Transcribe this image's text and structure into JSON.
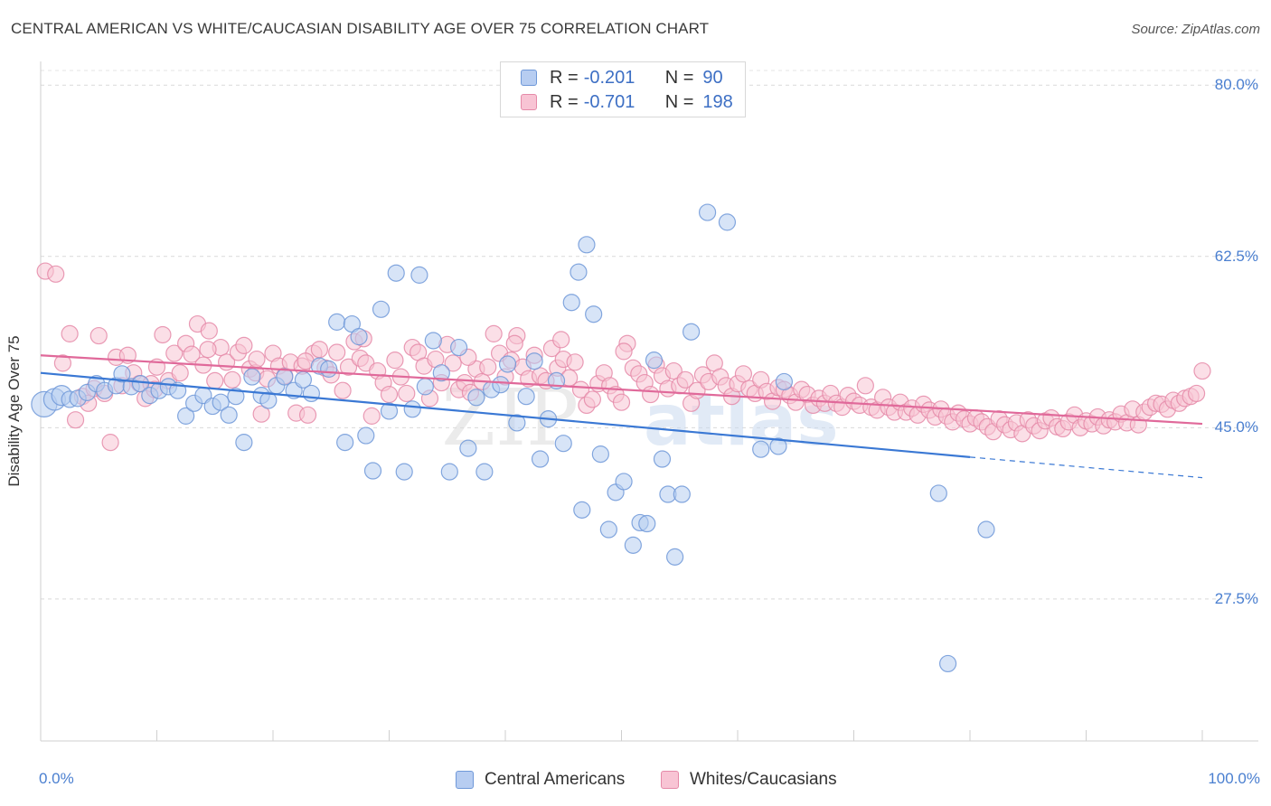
{
  "title": "CENTRAL AMERICAN VS WHITE/CAUCASIAN DISABILITY AGE OVER 75 CORRELATION CHART",
  "source": "Source: ZipAtlas.com",
  "watermark": {
    "zip": "ZIP",
    "atlas": "atlas"
  },
  "chart_data": {
    "type": "scatter",
    "xlabel": "",
    "ylabel": "Disability Age Over 75",
    "xlim": [
      0,
      100
    ],
    "ylim": [
      13,
      81.5
    ],
    "x_tick_labels": [
      {
        "value": 0,
        "label": "0.0%"
      },
      {
        "value": 100,
        "label": "100.0%"
      }
    ],
    "y_tick_labels": [
      {
        "value": 80.0,
        "label": "80.0%"
      },
      {
        "value": 62.5,
        "label": "62.5%"
      },
      {
        "value": 45.0,
        "label": "45.0%"
      },
      {
        "value": 27.5,
        "label": "27.5%"
      }
    ],
    "grid": true,
    "legend_position": "top-center",
    "stats": [
      {
        "series": "Central Americans",
        "r_label": "R =",
        "r": "-0.201",
        "n_label": "N =",
        "n": "90",
        "color": "#6f98d8",
        "fill": "#b7cdf1"
      },
      {
        "series": "Whites/Caucasians",
        "r_label": "R =",
        "r": "-0.701",
        "n_label": "N =",
        "n": "198",
        "color": "#e58aa8",
        "fill": "#f8c4d4"
      }
    ],
    "series": [
      {
        "name": "Central Americans",
        "color": "#6f98d8",
        "fill": "#b7cdf1",
        "trend": {
          "x0": 0,
          "y0": 50.6,
          "x1": 80,
          "y1": 42.0,
          "dash_to_x": 100,
          "dash_to_y": 39.9,
          "color": "#3a78d4"
        },
        "points": [
          [
            0.3,
            47.4
          ],
          [
            1.2,
            47.9
          ],
          [
            1.8,
            48.3
          ],
          [
            2.5,
            47.9
          ],
          [
            3.2,
            48.0
          ],
          [
            4.0,
            48.6
          ],
          [
            4.8,
            49.5
          ],
          [
            5.5,
            48.8
          ],
          [
            6.5,
            49.3
          ],
          [
            7.0,
            50.5
          ],
          [
            7.8,
            49.2
          ],
          [
            8.6,
            49.5
          ],
          [
            9.4,
            48.3
          ],
          [
            10.2,
            48.8
          ],
          [
            11.0,
            49.2
          ],
          [
            11.8,
            48.8
          ],
          [
            12.5,
            46.2
          ],
          [
            13.2,
            47.5
          ],
          [
            14.0,
            48.3
          ],
          [
            14.8,
            47.2
          ],
          [
            15.5,
            47.6
          ],
          [
            16.2,
            46.3
          ],
          [
            16.8,
            48.2
          ],
          [
            17.5,
            43.5
          ],
          [
            18.2,
            50.2
          ],
          [
            19.0,
            48.3
          ],
          [
            19.6,
            47.8
          ],
          [
            20.3,
            49.3
          ],
          [
            21.0,
            50.2
          ],
          [
            21.8,
            48.8
          ],
          [
            22.6,
            49.9
          ],
          [
            23.3,
            48.5
          ],
          [
            24.0,
            51.3
          ],
          [
            24.8,
            51.0
          ],
          [
            25.5,
            55.8
          ],
          [
            26.2,
            43.5
          ],
          [
            26.8,
            55.6
          ],
          [
            27.4,
            54.3
          ],
          [
            28.0,
            44.2
          ],
          [
            28.6,
            40.6
          ],
          [
            29.3,
            57.1
          ],
          [
            30.0,
            46.7
          ],
          [
            30.6,
            60.8
          ],
          [
            31.3,
            40.5
          ],
          [
            32.0,
            46.9
          ],
          [
            32.6,
            60.6
          ],
          [
            33.1,
            49.2
          ],
          [
            33.8,
            53.9
          ],
          [
            34.5,
            50.6
          ],
          [
            35.2,
            40.5
          ],
          [
            36.0,
            53.2
          ],
          [
            36.8,
            42.9
          ],
          [
            37.5,
            48.1
          ],
          [
            38.2,
            40.5
          ],
          [
            38.8,
            48.9
          ],
          [
            39.6,
            49.4
          ],
          [
            40.2,
            51.5
          ],
          [
            41.0,
            45.5
          ],
          [
            41.8,
            48.2
          ],
          [
            42.5,
            51.8
          ],
          [
            43.0,
            41.8
          ],
          [
            43.7,
            45.9
          ],
          [
            44.4,
            49.8
          ],
          [
            45.0,
            43.4
          ],
          [
            45.7,
            57.8
          ],
          [
            46.3,
            60.9
          ],
          [
            47.0,
            63.7
          ],
          [
            47.6,
            56.6
          ],
          [
            48.2,
            42.3
          ],
          [
            48.9,
            34.6
          ],
          [
            49.5,
            38.4
          ],
          [
            50.2,
            39.5
          ],
          [
            51.0,
            33.0
          ],
          [
            51.6,
            35.3
          ],
          [
            52.2,
            35.2
          ],
          [
            52.8,
            51.9
          ],
          [
            53.5,
            41.8
          ],
          [
            54.0,
            38.2
          ],
          [
            54.6,
            31.8
          ],
          [
            55.2,
            38.2
          ],
          [
            56.0,
            54.8
          ],
          [
            57.4,
            67.0
          ],
          [
            59.1,
            66.0
          ],
          [
            62.0,
            42.8
          ],
          [
            63.5,
            43.1
          ],
          [
            64.0,
            49.7
          ],
          [
            77.3,
            38.3
          ],
          [
            78.1,
            20.9
          ],
          [
            81.4,
            34.6
          ],
          [
            46.6,
            36.6
          ]
        ]
      },
      {
        "name": "Whites/Caucasians",
        "color": "#e58aa8",
        "fill": "#f8c4d4",
        "trend": {
          "x0": 0,
          "y0": 52.4,
          "x1": 100,
          "y1": 45.4,
          "color": "#e0699a"
        },
        "points": [
          [
            0.4,
            61.0
          ],
          [
            1.3,
            60.7
          ],
          [
            1.9,
            51.6
          ],
          [
            2.5,
            54.6
          ],
          [
            3.0,
            45.8
          ],
          [
            3.6,
            48.2
          ],
          [
            4.1,
            47.5
          ],
          [
            4.6,
            49.0
          ],
          [
            5.0,
            54.4
          ],
          [
            5.5,
            48.5
          ],
          [
            6.0,
            43.5
          ],
          [
            6.5,
            52.2
          ],
          [
            7.0,
            49.3
          ],
          [
            7.5,
            52.4
          ],
          [
            8.0,
            50.6
          ],
          [
            8.5,
            49.5
          ],
          [
            9.0,
            48.0
          ],
          [
            9.5,
            49.5
          ],
          [
            10.0,
            51.2
          ],
          [
            10.5,
            54.5
          ],
          [
            11.0,
            49.8
          ],
          [
            11.5,
            52.6
          ],
          [
            12.0,
            50.6
          ],
          [
            12.5,
            53.6
          ],
          [
            13.0,
            52.5
          ],
          [
            13.5,
            55.6
          ],
          [
            14.0,
            51.4
          ],
          [
            14.5,
            54.9
          ],
          [
            15.0,
            49.8
          ],
          [
            15.5,
            53.2
          ],
          [
            16.0,
            51.7
          ],
          [
            16.5,
            49.9
          ],
          [
            17.0,
            52.7
          ],
          [
            17.5,
            53.4
          ],
          [
            18.0,
            51.0
          ],
          [
            18.5,
            50.6
          ],
          [
            19.0,
            46.4
          ],
          [
            19.5,
            50.0
          ],
          [
            20.0,
            52.6
          ],
          [
            20.5,
            51.3
          ],
          [
            21.0,
            50.3
          ],
          [
            21.5,
            51.7
          ],
          [
            22.0,
            46.5
          ],
          [
            22.5,
            51.3
          ],
          [
            23.0,
            46.3
          ],
          [
            23.5,
            52.6
          ],
          [
            24.0,
            53.0
          ],
          [
            24.5,
            51.1
          ],
          [
            25.0,
            50.4
          ],
          [
            25.5,
            52.7
          ],
          [
            26.0,
            48.8
          ],
          [
            26.5,
            51.2
          ],
          [
            27.0,
            53.8
          ],
          [
            27.5,
            52.1
          ],
          [
            28.0,
            51.6
          ],
          [
            28.5,
            46.2
          ],
          [
            29.0,
            50.8
          ],
          [
            29.5,
            49.6
          ],
          [
            30.0,
            48.4
          ],
          [
            30.5,
            51.9
          ],
          [
            31.0,
            50.2
          ],
          [
            31.5,
            48.5
          ],
          [
            32.0,
            53.2
          ],
          [
            32.5,
            52.7
          ],
          [
            33.0,
            51.3
          ],
          [
            33.5,
            48.0
          ],
          [
            34.0,
            52.0
          ],
          [
            34.5,
            49.6
          ],
          [
            35.0,
            53.5
          ],
          [
            35.5,
            51.6
          ],
          [
            36.0,
            48.9
          ],
          [
            36.5,
            49.6
          ],
          [
            37.0,
            48.6
          ],
          [
            37.5,
            51.0
          ],
          [
            38.0,
            49.7
          ],
          [
            38.5,
            51.2
          ],
          [
            39.0,
            54.6
          ],
          [
            39.5,
            52.6
          ],
          [
            40.0,
            50.2
          ],
          [
            40.5,
            51.9
          ],
          [
            41.0,
            54.4
          ],
          [
            41.5,
            51.2
          ],
          [
            42.0,
            50.0
          ],
          [
            42.5,
            52.4
          ],
          [
            43.0,
            50.3
          ],
          [
            43.5,
            49.8
          ],
          [
            44.0,
            53.1
          ],
          [
            44.5,
            51.1
          ],
          [
            45.0,
            52.0
          ],
          [
            45.5,
            50.1
          ],
          [
            46.0,
            51.7
          ],
          [
            46.5,
            48.9
          ],
          [
            47.0,
            47.3
          ],
          [
            47.5,
            47.9
          ],
          [
            48.0,
            49.5
          ],
          [
            48.5,
            50.6
          ],
          [
            49.0,
            49.3
          ],
          [
            49.5,
            48.4
          ],
          [
            50.0,
            47.6
          ],
          [
            50.5,
            53.6
          ],
          [
            51.0,
            51.1
          ],
          [
            51.5,
            50.5
          ],
          [
            52.0,
            49.6
          ],
          [
            52.5,
            48.4
          ],
          [
            53.0,
            51.4
          ],
          [
            53.5,
            50.3
          ],
          [
            54.0,
            49.0
          ],
          [
            54.5,
            50.8
          ],
          [
            55.0,
            49.3
          ],
          [
            55.5,
            49.9
          ],
          [
            56.0,
            47.5
          ],
          [
            56.5,
            48.8
          ],
          [
            57.0,
            50.4
          ],
          [
            57.5,
            49.7
          ],
          [
            58.0,
            51.6
          ],
          [
            58.5,
            50.2
          ],
          [
            59.0,
            49.3
          ],
          [
            59.5,
            48.2
          ],
          [
            60.0,
            49.5
          ],
          [
            60.5,
            50.5
          ],
          [
            61.0,
            49.0
          ],
          [
            61.5,
            48.5
          ],
          [
            62.0,
            49.9
          ],
          [
            62.5,
            48.7
          ],
          [
            63.0,
            47.7
          ],
          [
            63.5,
            49.1
          ],
          [
            64.0,
            48.9
          ],
          [
            64.5,
            48.3
          ],
          [
            65.0,
            47.6
          ],
          [
            65.5,
            48.9
          ],
          [
            66.0,
            48.4
          ],
          [
            66.5,
            47.3
          ],
          [
            67.0,
            48.0
          ],
          [
            67.5,
            47.5
          ],
          [
            68.0,
            48.5
          ],
          [
            68.5,
            47.5
          ],
          [
            69.0,
            47.1
          ],
          [
            69.5,
            48.3
          ],
          [
            70.0,
            47.7
          ],
          [
            70.5,
            47.3
          ],
          [
            71.0,
            49.3
          ],
          [
            71.5,
            47.1
          ],
          [
            72.0,
            46.8
          ],
          [
            72.5,
            48.1
          ],
          [
            73.0,
            47.1
          ],
          [
            73.5,
            46.6
          ],
          [
            74.0,
            47.6
          ],
          [
            74.5,
            46.6
          ],
          [
            75.0,
            47.0
          ],
          [
            75.5,
            46.3
          ],
          [
            76.0,
            47.4
          ],
          [
            76.5,
            46.8
          ],
          [
            77.0,
            46.1
          ],
          [
            77.5,
            46.9
          ],
          [
            78.0,
            46.2
          ],
          [
            78.5,
            45.6
          ],
          [
            79.0,
            46.5
          ],
          [
            79.5,
            45.9
          ],
          [
            80.0,
            45.4
          ],
          [
            80.5,
            46.0
          ],
          [
            81.0,
            45.6
          ],
          [
            81.5,
            45.1
          ],
          [
            82.0,
            44.6
          ],
          [
            82.5,
            45.9
          ],
          [
            83.0,
            45.3
          ],
          [
            83.5,
            44.8
          ],
          [
            84.0,
            45.5
          ],
          [
            84.5,
            44.4
          ],
          [
            85.0,
            45.8
          ],
          [
            85.5,
            45.2
          ],
          [
            86.0,
            44.7
          ],
          [
            86.5,
            45.7
          ],
          [
            87.0,
            46.0
          ],
          [
            87.5,
            45.1
          ],
          [
            88.0,
            44.9
          ],
          [
            88.5,
            45.6
          ],
          [
            89.0,
            46.3
          ],
          [
            89.5,
            45.0
          ],
          [
            90.0,
            45.7
          ],
          [
            90.5,
            45.4
          ],
          [
            91.0,
            46.1
          ],
          [
            91.5,
            45.2
          ],
          [
            92.0,
            45.8
          ],
          [
            92.5,
            45.6
          ],
          [
            93.0,
            46.4
          ],
          [
            93.5,
            45.5
          ],
          [
            94.0,
            46.9
          ],
          [
            94.5,
            45.3
          ],
          [
            95.0,
            46.6
          ],
          [
            95.5,
            47.1
          ],
          [
            96.0,
            47.5
          ],
          [
            96.5,
            47.4
          ],
          [
            97.0,
            46.9
          ],
          [
            97.5,
            47.8
          ],
          [
            98.0,
            47.5
          ],
          [
            98.5,
            48.0
          ],
          [
            99.0,
            48.2
          ],
          [
            99.5,
            48.5
          ],
          [
            100.0,
            50.8
          ],
          [
            50.2,
            52.8
          ],
          [
            44.8,
            54.0
          ],
          [
            40.8,
            53.6
          ],
          [
            36.8,
            52.2
          ],
          [
            27.8,
            54.1
          ],
          [
            22.8,
            51.8
          ],
          [
            18.6,
            52.0
          ],
          [
            14.4,
            53.0
          ],
          [
            9.8,
            48.9
          ]
        ]
      }
    ]
  },
  "legend_bottom": [
    {
      "label": "Central Americans"
    },
    {
      "label": "Whites/Caucasians"
    }
  ]
}
